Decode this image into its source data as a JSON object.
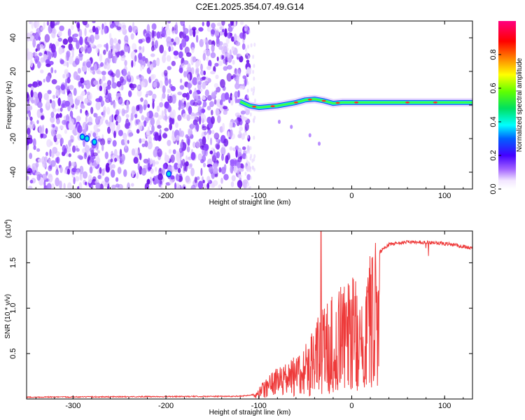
{
  "title": "C2E1.2025.354.07.49.G14",
  "chart_data": [
    {
      "type": "heatmap",
      "name": "spectrogram",
      "xlabel": "Height of straight line (km)",
      "ylabel": "Frequency (Hz)",
      "xlim": [
        -350,
        130
      ],
      "ylim": [
        -50,
        50
      ],
      "xticks": [
        -300,
        -200,
        -100,
        0,
        100
      ],
      "yticks": [
        -40,
        -20,
        0,
        20,
        40
      ],
      "noise_region_x": [
        -350,
        -115
      ],
      "signal_band": [
        {
          "x": -120,
          "y": 2.0
        },
        {
          "x": -110,
          "y": -0.5
        },
        {
          "x": -100,
          "y": -1.5
        },
        {
          "x": -90,
          "y": -1.0
        },
        {
          "x": -80,
          "y": -0.5
        },
        {
          "x": -70,
          "y": 0.5
        },
        {
          "x": -60,
          "y": 1.5
        },
        {
          "x": -50,
          "y": 3.0
        },
        {
          "x": -40,
          "y": 3.5
        },
        {
          "x": -30,
          "y": 2.5
        },
        {
          "x": -20,
          "y": 1.0
        },
        {
          "x": -10,
          "y": 1.5
        },
        {
          "x": 0,
          "y": 1.5
        },
        {
          "x": 20,
          "y": 1.5
        },
        {
          "x": 60,
          "y": 1.5
        },
        {
          "x": 100,
          "y": 1.5
        },
        {
          "x": 130,
          "y": 1.5
        }
      ],
      "hotspots": [
        {
          "x": -290,
          "y": -19
        },
        {
          "x": -285,
          "y": -20
        },
        {
          "x": -277,
          "y": -22
        },
        {
          "x": -197,
          "y": -41
        }
      ],
      "colorbar": {
        "label": "Normalized spectral amplitude",
        "range": [
          0,
          1
        ],
        "ticks": [
          "0.0",
          "0.2",
          "0.4",
          "0.6",
          "0.8"
        ]
      }
    },
    {
      "type": "line",
      "name": "snr",
      "xlabel": "Height of straight line (km)",
      "ylabel": "SNR (10 * v/v)",
      "scale_label": "(x10",
      "scale_exponent": "4",
      "xlim": [
        -350,
        130
      ],
      "ylim": [
        0,
        1.85
      ],
      "xticks": [
        -300,
        -200,
        -100,
        0,
        100
      ],
      "yticks": [
        "0.5",
        "1.0",
        "1.5"
      ],
      "color": "#ee3a3a",
      "envelope": [
        {
          "x": -350,
          "y": 0.02
        },
        {
          "x": -120,
          "y": 0.03
        },
        {
          "x": -105,
          "y": 0.05
        },
        {
          "x": -95,
          "y": 0.18
        },
        {
          "x": -80,
          "y": 0.32
        },
        {
          "x": -65,
          "y": 0.4
        },
        {
          "x": -50,
          "y": 0.55
        },
        {
          "x": -40,
          "y": 0.75
        },
        {
          "x": -33,
          "y": 0.9
        },
        {
          "x": -25,
          "y": 1.0
        },
        {
          "x": -15,
          "y": 1.15
        },
        {
          "x": -5,
          "y": 1.2
        },
        {
          "x": 5,
          "y": 1.25
        },
        {
          "x": 12,
          "y": 1.3
        },
        {
          "x": 20,
          "y": 1.5
        },
        {
          "x": 30,
          "y": 1.62
        },
        {
          "x": 40,
          "y": 1.7
        },
        {
          "x": 60,
          "y": 1.73
        },
        {
          "x": 90,
          "y": 1.72
        },
        {
          "x": 110,
          "y": 1.7
        },
        {
          "x": 130,
          "y": 1.66
        }
      ],
      "spike": {
        "x": -33,
        "y": 1.85
      }
    }
  ]
}
